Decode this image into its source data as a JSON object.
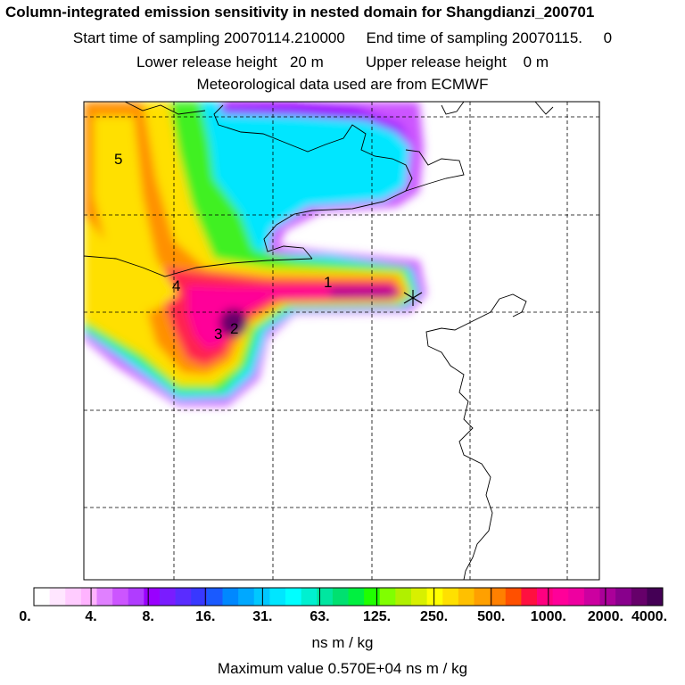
{
  "header": {
    "title": "Column-integrated emission sensitivity in nested domain for Shangdianzi_200701",
    "line2": "Start time of sampling 20070114.210000     End time of sampling 20070115.     0",
    "line3": "Lower release height   20 m          Upper release height    0 m",
    "line4": "Meteorological data used are from ECMWF"
  },
  "map": {
    "point_labels": [
      "1",
      "2",
      "3",
      "4",
      "5"
    ],
    "receptor_marker": "star-icon"
  },
  "colorbar": {
    "tick_labels": [
      "0.",
      "4.",
      "8.",
      "16.",
      "31.",
      "63.",
      "125.",
      "250.",
      "500.",
      "1000.",
      "2000.",
      "4000."
    ],
    "units": "ns m / kg",
    "colors": [
      "#ffffff",
      "#ffe6ff",
      "#ffccff",
      "#ffb3ff",
      "#e080ff",
      "#cc55ff",
      "#b03cff",
      "#9900ff",
      "#7a1cff",
      "#5a2cff",
      "#3838ff",
      "#1a5aff",
      "#0088ff",
      "#00a8ff",
      "#00c8ff",
      "#00e6ff",
      "#00ffff",
      "#00f0d0",
      "#00e6a0",
      "#00e070",
      "#00f040",
      "#20ff00",
      "#80ff00",
      "#b0f000",
      "#d8f000",
      "#ffff00",
      "#ffe000",
      "#ffc000",
      "#ffa000",
      "#ff8000",
      "#ff5000",
      "#ff1040",
      "#ff0080",
      "#ff0099",
      "#ee00a0",
      "#cc00a0",
      "#aa0099",
      "#88008c",
      "#66006a",
      "#440055"
    ]
  },
  "footer": {
    "maximum": "Maximum value  0.570E+04 ns m / kg"
  }
}
